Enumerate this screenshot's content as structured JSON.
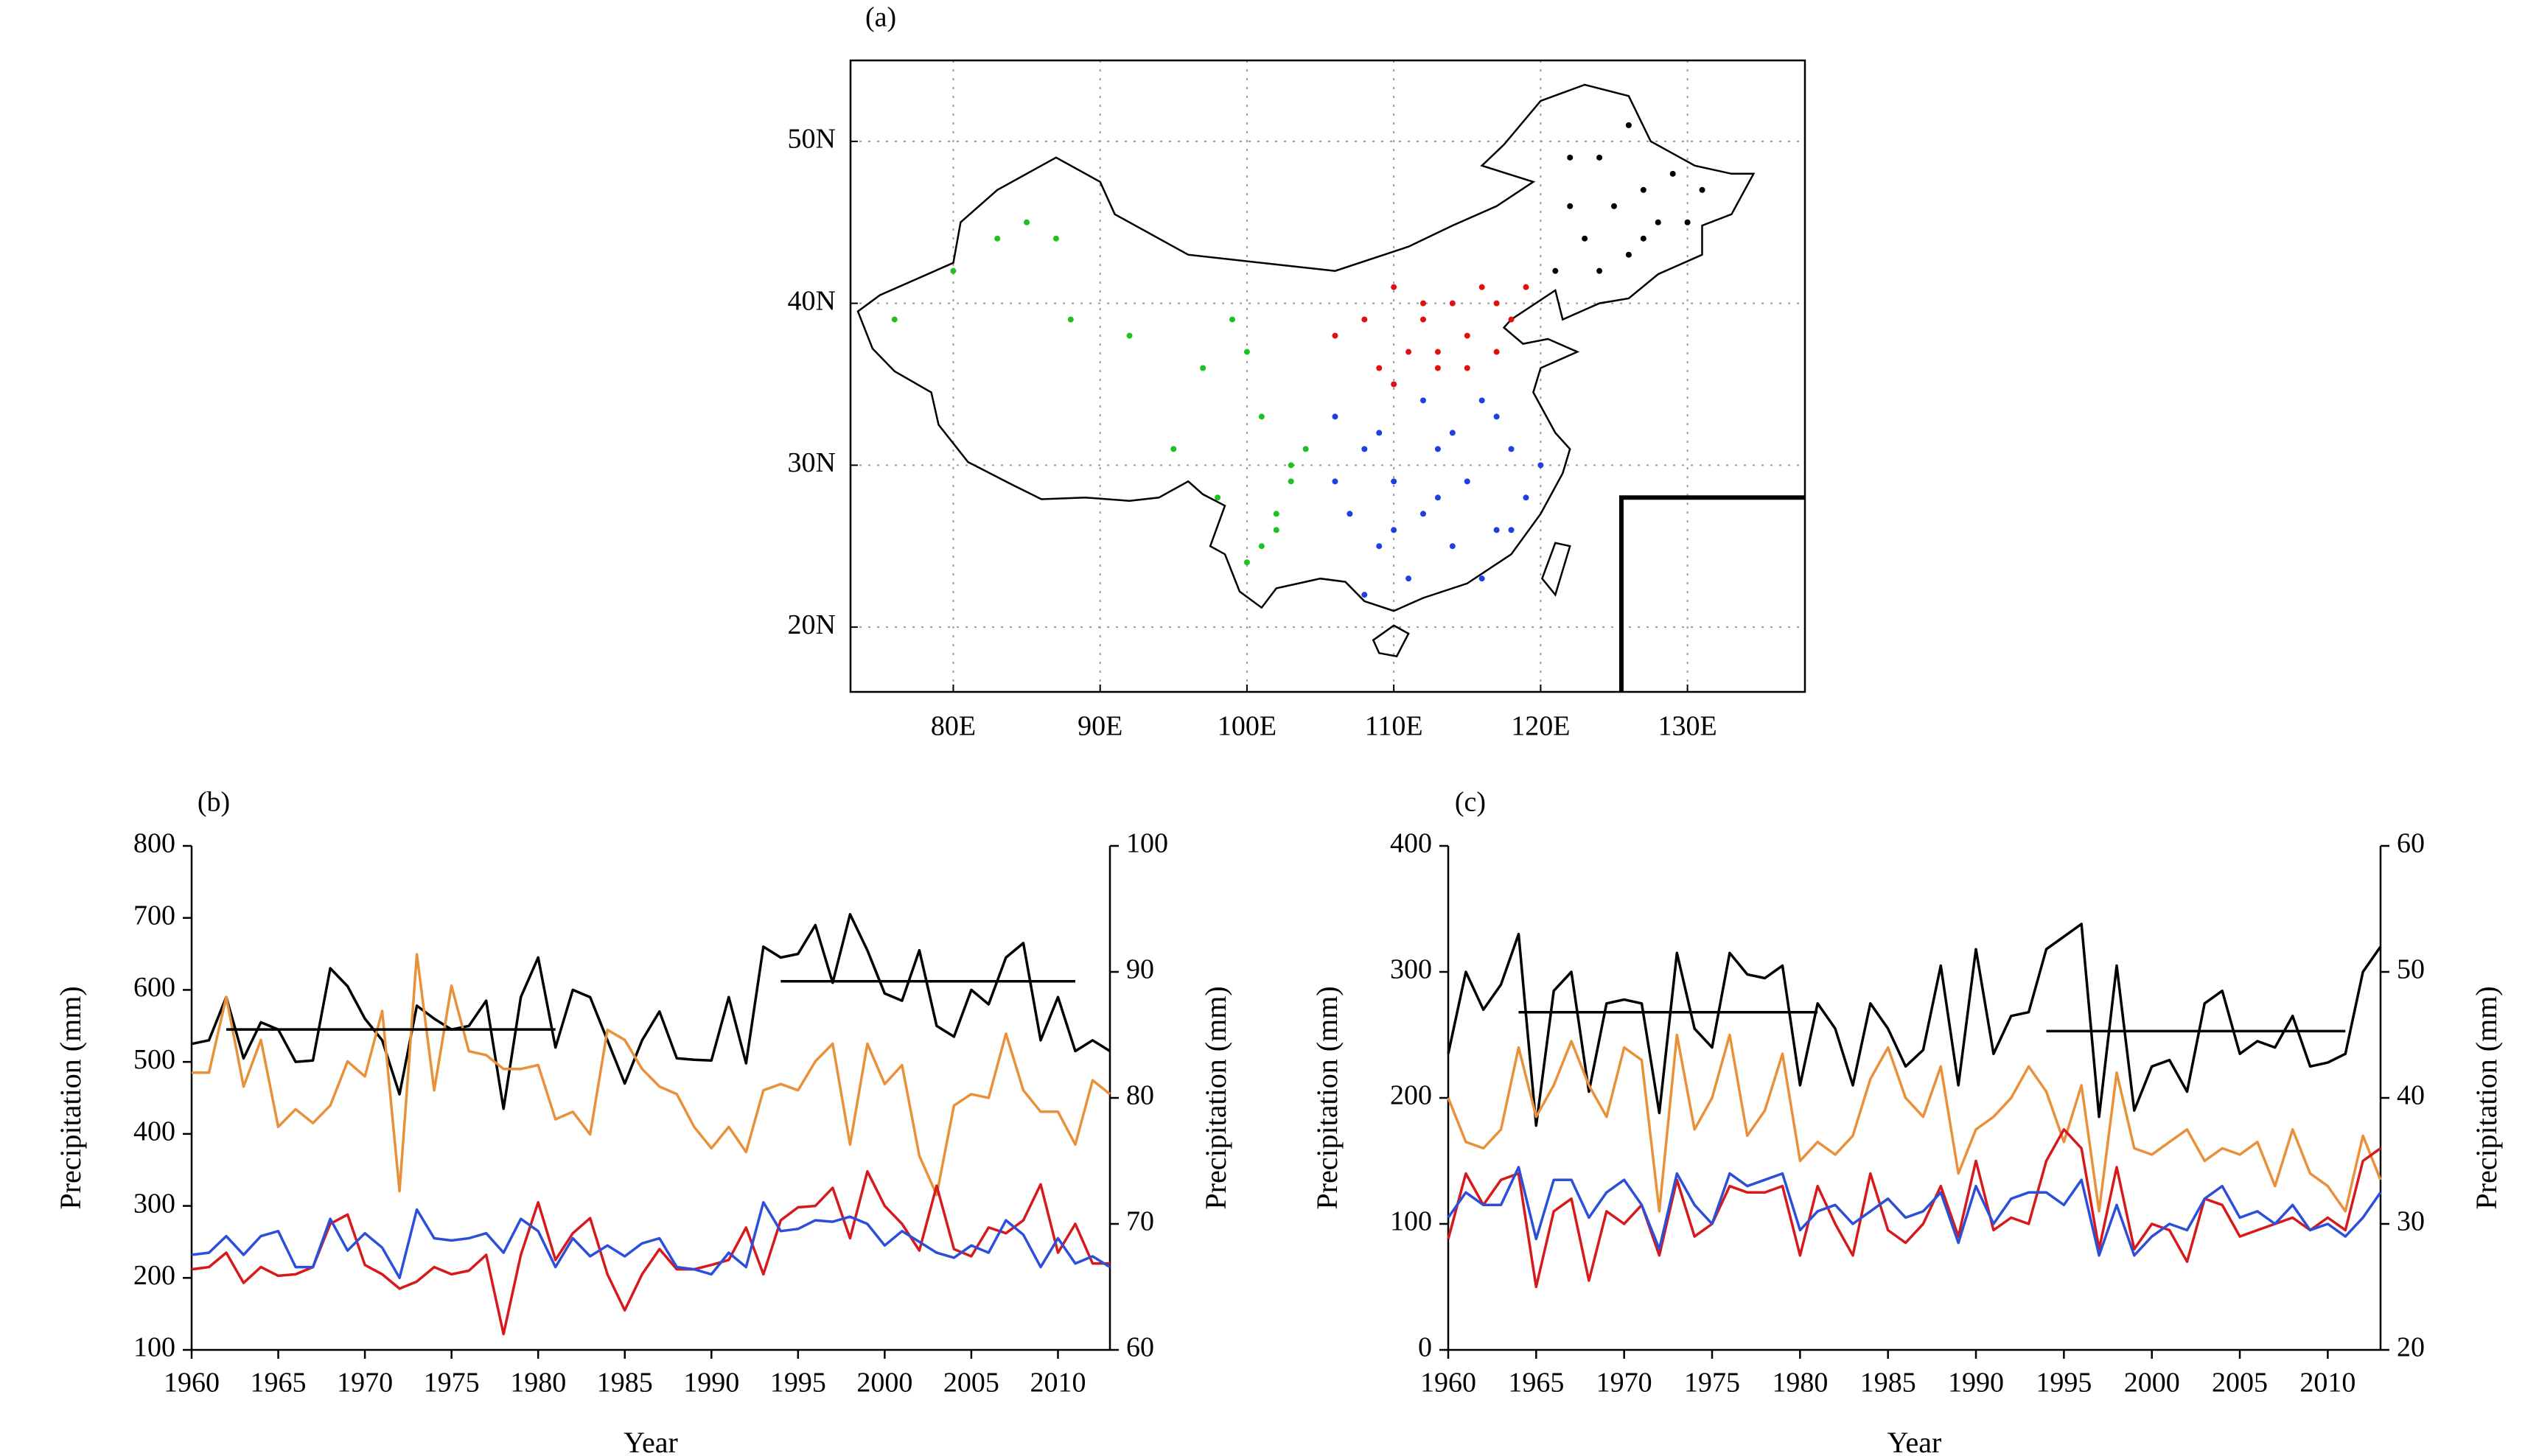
{
  "chart_data": [
    {
      "type": "map",
      "panel_label": "(a)",
      "xlim": [
        73,
        138
      ],
      "ylim": [
        16,
        55
      ],
      "xticks": [
        {
          "value": 80,
          "label": "80E"
        },
        {
          "value": 90,
          "label": "90E"
        },
        {
          "value": 100,
          "label": "100E"
        },
        {
          "value": 110,
          "label": "110E"
        },
        {
          "value": 120,
          "label": "120E"
        },
        {
          "value": 130,
          "label": "130E"
        }
      ],
      "yticks": [
        {
          "value": 20,
          "label": "20N"
        },
        {
          "value": 30,
          "label": "30N"
        },
        {
          "value": 40,
          "label": "40N"
        },
        {
          "value": 50,
          "label": "50N"
        }
      ],
      "grid": true,
      "series": [
        {
          "color": "#1fc01f",
          "x": [
            76,
            80,
            83,
            85,
            87,
            88,
            92,
            95,
            97,
            99,
            100,
            101,
            102,
            103,
            104,
            101,
            102,
            103,
            100,
            98
          ],
          "y": [
            39,
            42,
            44,
            45,
            44,
            39,
            38,
            31,
            36,
            39,
            37,
            25,
            27,
            30,
            31,
            33,
            26,
            29,
            24,
            28
          ]
        },
        {
          "color": "#e01010",
          "x": [
            106,
            108,
            110,
            111,
            112,
            113,
            114,
            115,
            116,
            117,
            118,
            119,
            110,
            112,
            115,
            109,
            113,
            117
          ],
          "y": [
            38,
            39,
            41,
            37,
            39,
            36,
            40,
            38,
            41,
            40,
            39,
            41,
            35,
            40,
            36,
            36,
            37,
            37
          ]
        },
        {
          "color": "#1f3fe0",
          "x": [
            106,
            108,
            110,
            112,
            114,
            116,
            118,
            120,
            107,
            109,
            111,
            113,
            115,
            117,
            119,
            108,
            110,
            112,
            114,
            116,
            118,
            106,
            109,
            113,
            117
          ],
          "y": [
            33,
            31,
            29,
            27,
            25,
            23,
            26,
            30,
            27,
            25,
            23,
            31,
            29,
            33,
            28,
            22,
            26,
            34,
            32,
            34,
            31,
            29,
            32,
            28,
            26
          ]
        },
        {
          "color": "#000000",
          "x": [
            121,
            123,
            125,
            127,
            129,
            131,
            122,
            124,
            126,
            128,
            130,
            124,
            126,
            122,
            127
          ],
          "y": [
            42,
            44,
            46,
            47,
            48,
            47,
            46,
            49,
            51,
            45,
            45,
            42,
            43,
            49,
            44
          ]
        }
      ]
    },
    {
      "type": "line",
      "panel_label": "(b)",
      "xlabel": "Year",
      "ylabel": "Precipitation (mm)",
      "y2label": "Precipitation (mm)",
      "x": [
        1960,
        1961,
        1962,
        1963,
        1964,
        1965,
        1966,
        1967,
        1968,
        1969,
        1970,
        1971,
        1972,
        1973,
        1974,
        1975,
        1976,
        1977,
        1978,
        1979,
        1980,
        1981,
        1982,
        1983,
        1984,
        1985,
        1986,
        1987,
        1988,
        1989,
        1990,
        1991,
        1992,
        1993,
        1994,
        1995,
        1996,
        1997,
        1998,
        1999,
        2000,
        2001,
        2002,
        2003,
        2004,
        2005,
        2006,
        2007,
        2008,
        2009,
        2010,
        2011,
        2012,
        2013
      ],
      "xlim": [
        1960,
        2013
      ],
      "xticks": [
        1960,
        1965,
        1970,
        1975,
        1980,
        1985,
        1990,
        1995,
        2000,
        2005,
        2010
      ],
      "ylim": [
        100,
        800
      ],
      "yticks": [
        100,
        200,
        300,
        400,
        500,
        600,
        700,
        800
      ],
      "y2lim": [
        60,
        100
      ],
      "y2ticks": [
        60,
        70,
        80,
        90,
        100
      ],
      "series": [
        {
          "color": "#000000",
          "values": [
            525,
            530,
            590,
            505,
            555,
            545,
            500,
            502,
            630,
            605,
            560,
            530,
            455,
            578,
            560,
            545,
            550,
            585,
            435,
            590,
            645,
            520,
            600,
            590,
            530,
            470,
            530,
            570,
            505,
            503,
            502,
            590,
            498,
            660,
            645,
            650,
            690,
            610,
            705,
            655,
            595,
            585,
            655,
            550,
            535,
            600,
            580,
            645,
            665,
            530,
            590,
            515,
            530,
            515
          ]
        },
        {
          "color": "#e8913a",
          "axis": "y2",
          "values": [
            82,
            82,
            88,
            80.9,
            84.6,
            77.7,
            79.1,
            78,
            79.4,
            82.9,
            81.7,
            86.9,
            72.6,
            91.4,
            80.6,
            88.9,
            83.7,
            83.4,
            82.3,
            82.3,
            82.6,
            78.3,
            78.9,
            77.1,
            85.4,
            84.6,
            82.3,
            80.9,
            80.3,
            77.7,
            76,
            77.7,
            75.7,
            80.6,
            81.1,
            80.6,
            82.9,
            84.3,
            76.3,
            84.3,
            81.1,
            82.6,
            75.4,
            72.3,
            79.4,
            80.3,
            80,
            85.1,
            80.6,
            78.9,
            78.9,
            76.3,
            81.4,
            80.3
          ]
        },
        {
          "color": "#d7191c",
          "values": [
            212,
            215,
            235,
            193,
            215,
            203,
            205,
            215,
            275,
            288,
            218,
            205,
            185,
            195,
            215,
            205,
            210,
            232,
            122,
            232,
            305,
            225,
            262,
            283,
            205,
            155,
            205,
            240,
            212,
            212,
            218,
            225,
            270,
            205,
            280,
            298,
            300,
            325,
            255,
            348,
            300,
            275,
            238,
            328,
            240,
            230,
            270,
            262,
            280,
            330,
            235,
            275,
            220,
            220
          ]
        },
        {
          "color": "#2b4fd9",
          "values": [
            232,
            235,
            258,
            232,
            258,
            265,
            215,
            215,
            282,
            238,
            262,
            242,
            200,
            295,
            255,
            252,
            255,
            262,
            235,
            282,
            265,
            215,
            255,
            230,
            245,
            230,
            248,
            255,
            215,
            212,
            205,
            235,
            215,
            305,
            265,
            268,
            280,
            278,
            285,
            275,
            245,
            265,
            250,
            235,
            228,
            245,
            235,
            280,
            260,
            215,
            255,
            220,
            230,
            215
          ]
        }
      ],
      "segments": [
        {
          "x": [
            1962,
            1981
          ],
          "y": 545
        },
        {
          "x": [
            1994,
            2011
          ],
          "y": 612
        }
      ]
    },
    {
      "type": "line",
      "panel_label": "(c)",
      "xlabel": "Year",
      "ylabel": "Precipitation (mm)",
      "y2label": "Precipitation (mm)",
      "x": [
        1960,
        1961,
        1962,
        1963,
        1964,
        1965,
        1966,
        1967,
        1968,
        1969,
        1970,
        1971,
        1972,
        1973,
        1974,
        1975,
        1976,
        1977,
        1978,
        1979,
        1980,
        1981,
        1982,
        1983,
        1984,
        1985,
        1986,
        1987,
        1988,
        1989,
        1990,
        1991,
        1992,
        1993,
        1994,
        1995,
        1996,
        1997,
        1998,
        1999,
        2000,
        2001,
        2002,
        2003,
        2004,
        2005,
        2006,
        2007,
        2008,
        2009,
        2010,
        2011,
        2012,
        2013
      ],
      "xlim": [
        1960,
        2013
      ],
      "xticks": [
        1960,
        1965,
        1970,
        1975,
        1980,
        1985,
        1990,
        1995,
        2000,
        2005,
        2010
      ],
      "ylim": [
        0,
        400
      ],
      "yticks": [
        0,
        100,
        200,
        300,
        400
      ],
      "y2lim": [
        20,
        60
      ],
      "y2ticks": [
        20,
        30,
        40,
        50,
        60
      ],
      "series": [
        {
          "color": "#000000",
          "values": [
            235,
            300,
            270,
            290,
            330,
            178,
            285,
            300,
            205,
            275,
            278,
            275,
            188,
            315,
            255,
            240,
            315,
            298,
            295,
            305,
            210,
            275,
            255,
            210,
            275,
            255,
            225,
            238,
            305,
            210,
            318,
            235,
            265,
            268,
            318,
            328,
            338,
            185,
            305,
            190,
            225,
            230,
            205,
            275,
            285,
            235,
            245,
            240,
            265,
            225,
            228,
            235,
            300,
            320
          ]
        },
        {
          "color": "#e8913a",
          "axis": "y2",
          "values": [
            40,
            36.5,
            36,
            37.5,
            44,
            38.5,
            41,
            44.5,
            41,
            38.5,
            44,
            43,
            31,
            45,
            37.5,
            40,
            45,
            37,
            39,
            43.5,
            35,
            36.5,
            35.5,
            37,
            41.5,
            44,
            40,
            38.5,
            42.5,
            34,
            37.5,
            38.5,
            40,
            42.5,
            40.5,
            36.5,
            41,
            31,
            42,
            36,
            35.5,
            36.5,
            37.5,
            35,
            36,
            35.5,
            36.5,
            33,
            37.5,
            34,
            33,
            31,
            37,
            33.5
          ]
        },
        {
          "color": "#d7191c",
          "values": [
            88,
            140,
            115,
            135,
            140,
            50,
            110,
            120,
            55,
            110,
            100,
            115,
            75,
            135,
            90,
            100,
            130,
            125,
            125,
            130,
            75,
            130,
            100,
            75,
            140,
            95,
            85,
            100,
            130,
            90,
            150,
            95,
            105,
            100,
            150,
            175,
            160,
            80,
            145,
            80,
            100,
            95,
            70,
            120,
            115,
            90,
            95,
            100,
            105,
            95,
            105,
            95,
            150,
            160
          ]
        },
        {
          "color": "#2b4fd9",
          "values": [
            105,
            125,
            115,
            115,
            145,
            88,
            135,
            135,
            105,
            125,
            135,
            115,
            80,
            140,
            115,
            100,
            140,
            130,
            135,
            140,
            95,
            110,
            115,
            100,
            110,
            120,
            105,
            110,
            125,
            85,
            130,
            100,
            120,
            125,
            125,
            115,
            135,
            75,
            115,
            75,
            90,
            100,
            95,
            120,
            130,
            105,
            110,
            100,
            115,
            95,
            100,
            90,
            105,
            125
          ]
        }
      ],
      "segments": [
        {
          "x": [
            1964,
            1981
          ],
          "y": 268
        },
        {
          "x": [
            1994,
            2011
          ],
          "y": 253
        }
      ]
    }
  ]
}
